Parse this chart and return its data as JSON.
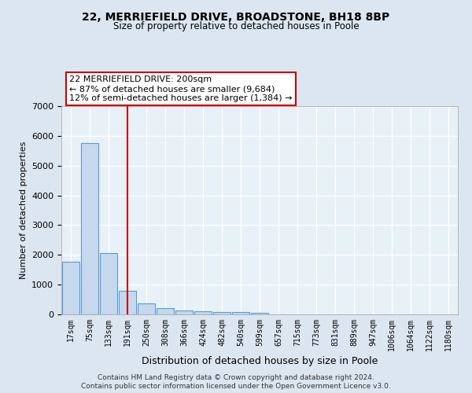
{
  "title1": "22, MERRIEFIELD DRIVE, BROADSTONE, BH18 8BP",
  "title2": "Size of property relative to detached houses in Poole",
  "xlabel": "Distribution of detached houses by size in Poole",
  "ylabel": "Number of detached properties",
  "bar_labels": [
    "17sqm",
    "75sqm",
    "133sqm",
    "191sqm",
    "250sqm",
    "308sqm",
    "366sqm",
    "424sqm",
    "482sqm",
    "540sqm",
    "599sqm",
    "657sqm",
    "715sqm",
    "773sqm",
    "831sqm",
    "889sqm",
    "947sqm",
    "1006sqm",
    "1064sqm",
    "1122sqm",
    "1180sqm"
  ],
  "bar_values": [
    1780,
    5750,
    2060,
    800,
    380,
    210,
    120,
    100,
    90,
    70,
    60,
    0,
    0,
    0,
    0,
    0,
    0,
    0,
    0,
    0,
    0
  ],
  "bar_color": "#c5d8ed",
  "bar_edge_color": "#5b9bd5",
  "vline_x": 3,
  "vline_color": "#cc0000",
  "annotation_text": "22 MERRIEFIELD DRIVE: 200sqm\n← 87% of detached houses are smaller (9,684)\n12% of semi-detached houses are larger (1,384) →",
  "annotation_box_color": "#cc0000",
  "ylim": [
    0,
    7000
  ],
  "yticks": [
    0,
    1000,
    2000,
    3000,
    4000,
    5000,
    6000,
    7000
  ],
  "background_color": "#dce6f1",
  "plot_bg_color": "#e8f0f8",
  "grid_color": "#ffffff",
  "footer_line1": "Contains HM Land Registry data © Crown copyright and database right 2024.",
  "footer_line2": "Contains public sector information licensed under the Open Government Licence v3.0."
}
